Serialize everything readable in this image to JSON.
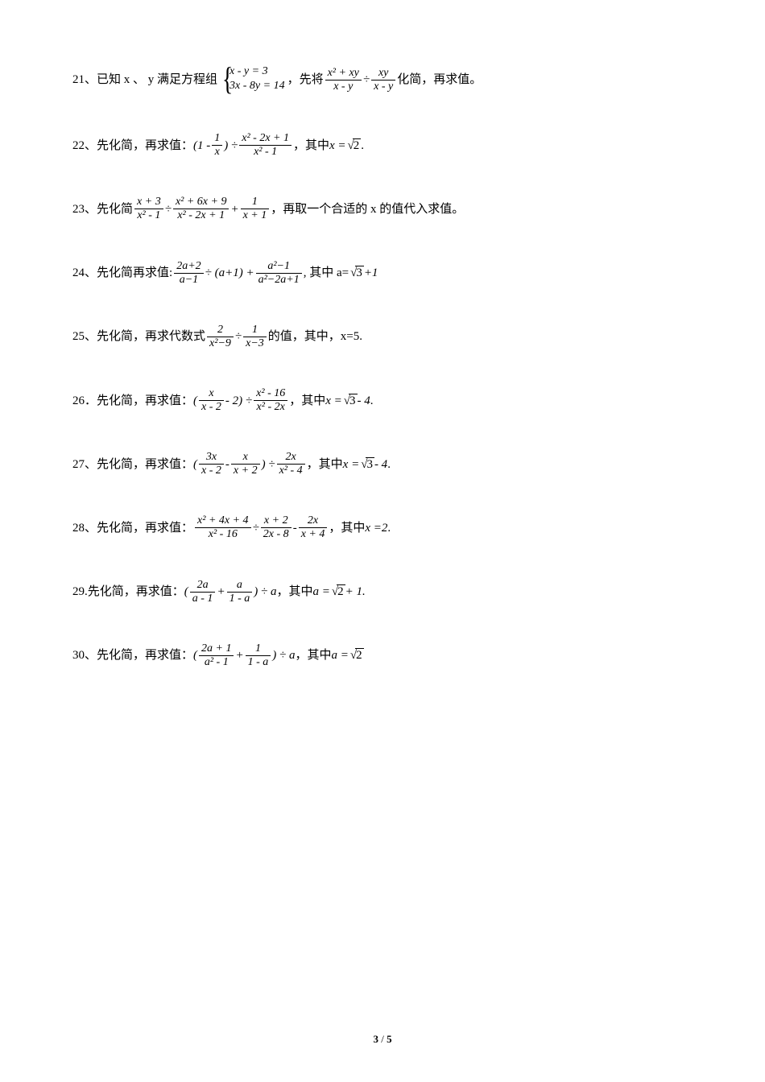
{
  "page": {
    "current": "3",
    "total": "5",
    "sep": " / "
  },
  "phrases": {
    "simplify_then_eval": "先化简，再求值：",
    "simplify_then_solve": "先化简再求值:",
    "simplify_first": "先化简",
    "then_value_of_expr": "再求代数式",
    "of_value": "的值，其中，",
    "where": "，其中",
    "where2": "其中",
    "then_pick_x": "，再取一个合适的 x 的值代入求值。",
    "given_xy": "已知 x 、 y 满足方程组",
    "first_simp": "，先将",
    "simplify_then_val": "化简，再求值。",
    "punct_comma": "，",
    "punct_period": ".",
    "punct_cnperiod": "。",
    "div": "÷",
    "plus": "+",
    "minus": "-",
    "eq": "=",
    "lp": "(",
    "rp": ")"
  },
  "problems": [
    {
      "n": "21、",
      "type": "system",
      "sys": [
        "x - y = 3",
        "3x - 8y = 14"
      ],
      "lead": "given_xy",
      "mid": "first_simp",
      "expr_l": {
        "num": "x² + xy",
        "den": "x - y"
      },
      "expr_r": {
        "num": "xy",
        "den": "x - y"
      },
      "tail": "simplify_then_val"
    },
    {
      "n": "22、",
      "type": "simpeval",
      "parts": [
        {
          "t": "txt",
          "v": "(1 - "
        },
        {
          "t": "frac",
          "num": "1",
          "den": "x"
        },
        {
          "t": "txt",
          "v": ") ÷ "
        },
        {
          "t": "frac",
          "num": "x² - 2x + 1",
          "den": "x² - 1"
        }
      ],
      "where_var": "x",
      "where_val_sqrt": "2",
      "trail": "."
    },
    {
      "n": "23、",
      "type": "custom",
      "lead": "simplify_first",
      "parts": [
        {
          "t": "frac",
          "num": "x + 3",
          "den": "x² - 1"
        },
        {
          "t": "txt",
          "v": " ÷ "
        },
        {
          "t": "frac",
          "num": "x² + 6x + 9",
          "den": "x² - 2x + 1"
        },
        {
          "t": "txt",
          "v": " + "
        },
        {
          "t": "frac",
          "num": "1",
          "den": "x + 1"
        }
      ],
      "tail": "then_pick_x"
    },
    {
      "n": "24、",
      "type": "custom",
      "lead": "simplify_then_solve",
      "parts": [
        {
          "t": "frac",
          "num": "2a+2",
          "den": "a−1"
        },
        {
          "t": "txt",
          "v": " ÷ (a+1) + "
        },
        {
          "t": "frac",
          "num": "a²−1",
          "den": "a²−2a+1"
        }
      ],
      "tail_custom": ", 其中 a=",
      "sqrtv": "3",
      "after_sqrt": "+1"
    },
    {
      "n": "25、",
      "type": "custom",
      "lead_txt": "先化简，再求代数式",
      "parts": [
        {
          "t": "frac",
          "num": "2",
          "den": "x²−9"
        },
        {
          "t": "txt",
          "v": " ÷ "
        },
        {
          "t": "frac",
          "num": "1",
          "den": "x−3"
        }
      ],
      "tail_custom2": " 的值，其中，x=5."
    },
    {
      "n": "26．",
      "type": "simpeval",
      "parts": [
        {
          "t": "txt",
          "v": "("
        },
        {
          "t": "frac",
          "num": "x",
          "den": "x - 2"
        },
        {
          "t": "txt",
          "v": " - 2) ÷ "
        },
        {
          "t": "frac",
          "num": "x² - 16",
          "den": "x² - 2x"
        }
      ],
      "where_var": "x",
      "where_val_sqrt": "3",
      "after": " - 4",
      "trail": "."
    },
    {
      "n": "27、",
      "type": "simpeval",
      "parts": [
        {
          "t": "txt",
          "v": "("
        },
        {
          "t": "frac",
          "num": "3x",
          "den": "x - 2"
        },
        {
          "t": "txt",
          "v": " - "
        },
        {
          "t": "frac",
          "num": "x",
          "den": "x + 2"
        },
        {
          "t": "txt",
          "v": ") ÷ "
        },
        {
          "t": "frac",
          "num": "2x",
          "den": "x² - 4"
        }
      ],
      "where_var": "x",
      "where_val_sqrt": "3",
      "after": " - 4",
      "trail": "."
    },
    {
      "n": "28、",
      "type": "simpeval",
      "parts": [
        {
          "t": "frac",
          "num": "x² + 4x + 4",
          "den": "x² - 16"
        },
        {
          "t": "txt",
          "v": " ÷ "
        },
        {
          "t": "frac",
          "num": "x + 2",
          "den": "2x - 8"
        },
        {
          "t": "txt",
          "v": " - "
        },
        {
          "t": "frac",
          "num": "2x",
          "den": "x + 4"
        }
      ],
      "where_var": "x",
      "where_plain": "2",
      "trail": "."
    },
    {
      "n": "29.",
      "type": "simpeval",
      "lead_override": "先化简，再求值：",
      "parts": [
        {
          "t": "txt",
          "v": "("
        },
        {
          "t": "frac",
          "num": "2a",
          "den": "a - 1"
        },
        {
          "t": "txt",
          "v": " + "
        },
        {
          "t": "frac",
          "num": "a",
          "den": "1 - a"
        },
        {
          "t": "txt",
          "v": ") ÷ a"
        }
      ],
      "where_var": "a",
      "where_val_sqrt": "2",
      "after": " + 1.",
      "trail": ""
    },
    {
      "n": "30、",
      "type": "simpeval",
      "parts": [
        {
          "t": "txt",
          "v": "("
        },
        {
          "t": "frac",
          "num": "2a + 1",
          "den": "a² - 1"
        },
        {
          "t": "txt",
          "v": " + "
        },
        {
          "t": "frac",
          "num": "1",
          "den": "1 - a"
        },
        {
          "t": "txt",
          "v": ") ÷ a"
        }
      ],
      "where_var": "a",
      "where_val_sqrt": "2",
      "trail": ""
    }
  ]
}
